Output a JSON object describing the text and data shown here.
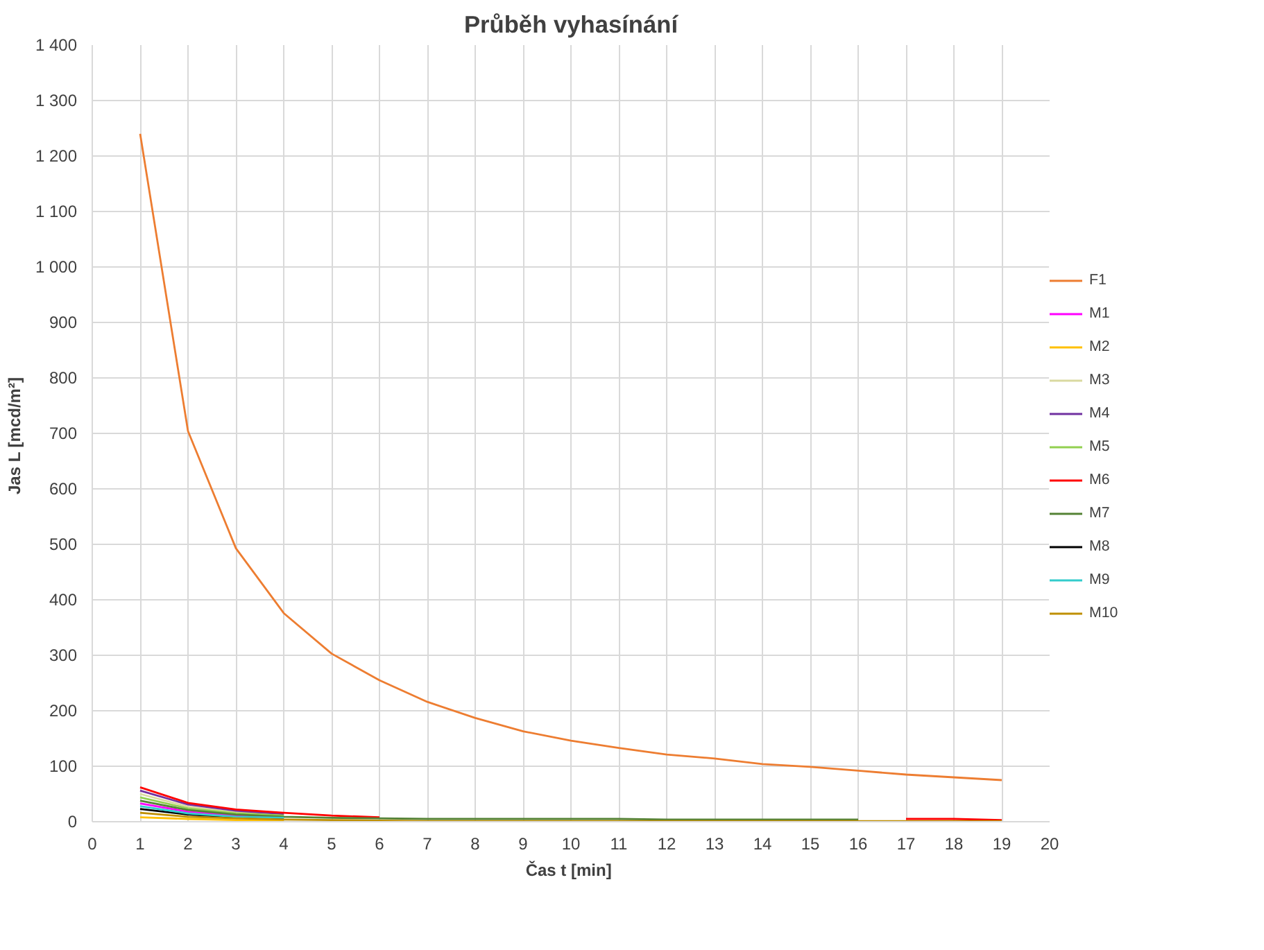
{
  "chart_data": {
    "type": "line",
    "title": "Průběh vyhasínání",
    "xlabel": "Čas  t [min]",
    "ylabel": "Jas  L [mcd/m²]",
    "x": [
      1,
      2,
      3,
      4,
      5,
      6,
      7,
      8,
      9,
      10,
      11,
      12,
      13,
      14,
      15,
      16,
      17,
      18,
      19
    ],
    "xlim": [
      0,
      20
    ],
    "xticks": [
      0,
      1,
      2,
      3,
      4,
      5,
      6,
      7,
      8,
      9,
      10,
      11,
      12,
      13,
      14,
      15,
      16,
      17,
      18,
      19,
      20
    ],
    "ylim": [
      0,
      1400
    ],
    "yticks": [
      {
        "value": 0,
        "label": "0"
      },
      {
        "value": 100,
        "label": "100"
      },
      {
        "value": 200,
        "label": "200"
      },
      {
        "value": 300,
        "label": "300"
      },
      {
        "value": 400,
        "label": "400"
      },
      {
        "value": 500,
        "label": "500"
      },
      {
        "value": 600,
        "label": "600"
      },
      {
        "value": 700,
        "label": "700"
      },
      {
        "value": 800,
        "label": "800"
      },
      {
        "value": 900,
        "label": "900"
      },
      {
        "value": 1000,
        "label": "1 000"
      },
      {
        "value": 1100,
        "label": "1 100"
      },
      {
        "value": 1200,
        "label": "1 200"
      },
      {
        "value": 1300,
        "label": "1 300"
      },
      {
        "value": 1400,
        "label": "1 400"
      }
    ],
    "grid": true,
    "legend": "right",
    "marker": "none",
    "line_style": "solid",
    "series": [
      {
        "name": "F1",
        "color": "#ed7d31",
        "values": [
          1240,
          704,
          493,
          376,
          303,
          255,
          216,
          187,
          163,
          146,
          133,
          121,
          114,
          104,
          99,
          92,
          85,
          80,
          75
        ]
      },
      {
        "name": "M1",
        "color": "#ff00ff",
        "values": [
          33,
          18,
          11,
          8,
          null,
          null,
          null,
          null,
          null,
          null,
          null,
          null,
          null,
          null,
          null,
          null,
          null,
          null,
          null
        ]
      },
      {
        "name": "M2",
        "color": "#ffc000",
        "values": [
          8,
          5,
          3,
          2,
          null,
          null,
          null,
          null,
          null,
          null,
          null,
          null,
          null,
          null,
          null,
          null,
          null,
          null,
          null
        ]
      },
      {
        "name": "M3",
        "color": "#d9d9a0",
        "values": [
          50,
          27,
          17,
          12,
          null,
          null,
          null,
          null,
          null,
          null,
          null,
          null,
          null,
          null,
          null,
          null,
          null,
          null,
          null
        ]
      },
      {
        "name": "M4",
        "color": "#7030a0",
        "values": [
          56,
          31,
          20,
          14,
          null,
          null,
          null,
          null,
          null,
          null,
          null,
          null,
          null,
          null,
          null,
          null,
          null,
          null,
          null
        ]
      },
      {
        "name": "M5",
        "color": "#92d050",
        "values": [
          44,
          24,
          15,
          11,
          null,
          null,
          null,
          null,
          null,
          null,
          null,
          null,
          null,
          null,
          null,
          null,
          null,
          null,
          null
        ]
      },
      {
        "name": "M6",
        "color": "#ff0000",
        "values": [
          62,
          34,
          22,
          16,
          11,
          8,
          null,
          null,
          null,
          null,
          null,
          null,
          null,
          null,
          null,
          null,
          5,
          5,
          3
        ]
      },
      {
        "name": "M7",
        "color": "#548235",
        "values": [
          38,
          21,
          13,
          9,
          7,
          6,
          5,
          5,
          5,
          5,
          5,
          4,
          4,
          4,
          4,
          4,
          null,
          null,
          null
        ]
      },
      {
        "name": "M8",
        "color": "#000000",
        "values": [
          23,
          13,
          8,
          6,
          null,
          null,
          null,
          null,
          null,
          null,
          null,
          null,
          null,
          null,
          null,
          null,
          null,
          null,
          null
        ]
      },
      {
        "name": "M9",
        "color": "#33cccc",
        "values": [
          28,
          15,
          9,
          7,
          null,
          null,
          null,
          null,
          null,
          null,
          null,
          null,
          null,
          null,
          null,
          null,
          null,
          null,
          null
        ]
      },
      {
        "name": "M10",
        "color": "#bf8f00",
        "values": [
          16,
          9,
          6,
          4,
          3,
          2,
          1,
          1,
          1,
          1,
          1,
          1,
          1,
          1,
          1,
          1,
          1,
          1,
          1
        ]
      }
    ]
  }
}
